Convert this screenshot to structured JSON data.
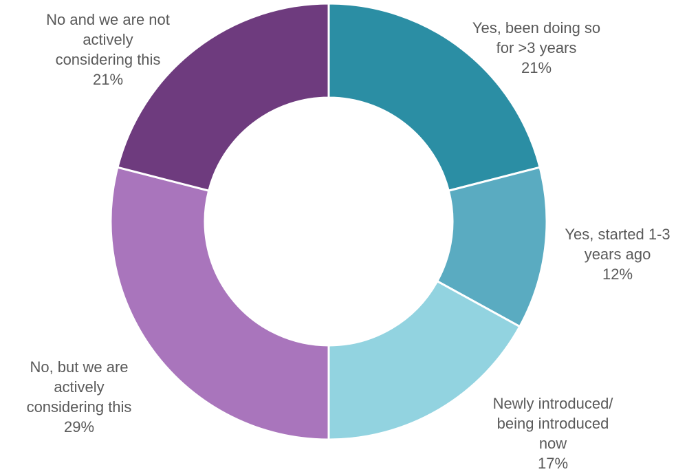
{
  "chart_data": {
    "type": "pie",
    "title": "",
    "slices": [
      {
        "label_lines": [
          "Yes, been doing so",
          "for >3 years"
        ],
        "value": 21,
        "pct_label": "21%",
        "color": "#2b8ea4"
      },
      {
        "label_lines": [
          "Yes, started 1-3",
          "years ago"
        ],
        "value": 12,
        "pct_label": "12%",
        "color": "#5aabc1"
      },
      {
        "label_lines": [
          "Newly introduced/",
          "being introduced",
          "now"
        ],
        "value": 17,
        "pct_label": "17%",
        "color": "#92d3e0"
      },
      {
        "label_lines": [
          "No, but we are",
          "actively",
          "considering this"
        ],
        "value": 29,
        "pct_label": "29%",
        "color": "#a975bc"
      },
      {
        "label_lines": [
          "No and we are not",
          "actively",
          "considering this"
        ],
        "value": 21,
        "pct_label": "21%",
        "color": "#6e3b7e"
      }
    ],
    "donut": true,
    "start_angle": "12 o'clock, clockwise",
    "legend": "none (category labels placed outside slices)"
  }
}
